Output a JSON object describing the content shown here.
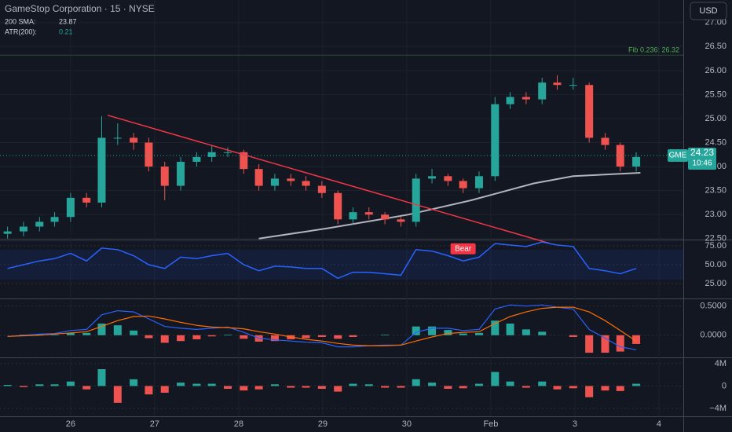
{
  "chart_data": [
    {
      "type": "candlestick",
      "title": "GameStop Corporation · 15 · NYSE",
      "currency": "USD",
      "up_color": "#26a69a",
      "down_color": "#ef5350",
      "x": [
        -0.75,
        -0.56,
        -0.37,
        -0.19,
        0,
        0.19,
        0.37,
        0.56,
        0.75,
        0.93,
        1.12,
        1.31,
        1.5,
        1.68,
        1.87,
        2.06,
        2.24,
        2.43,
        2.62,
        2.8,
        2.99,
        3.18,
        3.36,
        3.55,
        3.74,
        3.93,
        4.11,
        4.3,
        4.49,
        4.67,
        4.86,
        5.05,
        5.23,
        5.42,
        5.61,
        5.79,
        5.98,
        6.17,
        6.36,
        6.54,
        6.73
      ],
      "open": [
        22.6,
        22.65,
        22.75,
        22.85,
        22.95,
        23.35,
        23.25,
        24.6,
        24.6,
        24.5,
        24.0,
        23.6,
        24.1,
        24.2,
        24.3,
        24.3,
        23.95,
        23.6,
        23.75,
        23.7,
        23.6,
        23.45,
        22.9,
        23.05,
        23.0,
        22.9,
        22.85,
        23.75,
        23.8,
        23.7,
        23.55,
        23.8,
        25.3,
        25.45,
        25.4,
        25.75,
        25.7,
        25.7,
        24.6,
        24.45,
        24.0
      ],
      "high": [
        22.75,
        22.85,
        22.95,
        23.05,
        23.45,
        23.45,
        25.05,
        24.9,
        24.7,
        24.6,
        24.1,
        24.2,
        24.3,
        24.45,
        24.4,
        24.35,
        24.05,
        23.85,
        23.85,
        23.8,
        23.7,
        23.5,
        23.15,
        23.15,
        23.05,
        22.95,
        23.85,
        23.95,
        23.85,
        23.75,
        23.9,
        25.45,
        25.55,
        25.55,
        25.85,
        25.9,
        25.85,
        25.75,
        24.7,
        24.5,
        24.3
      ],
      "low": [
        22.5,
        22.55,
        22.65,
        22.75,
        22.85,
        23.15,
        23.15,
        24.45,
        24.35,
        23.9,
        23.3,
        23.5,
        24.0,
        24.1,
        24.2,
        23.85,
        23.5,
        23.5,
        23.6,
        23.5,
        23.35,
        22.8,
        22.8,
        22.9,
        22.8,
        22.75,
        22.75,
        23.65,
        23.6,
        23.45,
        23.45,
        23.7,
        25.2,
        25.3,
        25.3,
        25.6,
        25.6,
        24.5,
        24.35,
        23.9,
        23.9
      ],
      "close": [
        22.65,
        22.75,
        22.85,
        22.95,
        23.35,
        23.25,
        24.6,
        24.6,
        24.5,
        24.0,
        23.6,
        24.1,
        24.2,
        24.3,
        24.3,
        23.95,
        23.6,
        23.75,
        23.7,
        23.6,
        23.45,
        22.9,
        23.05,
        23.0,
        22.9,
        22.85,
        23.75,
        23.8,
        23.7,
        23.55,
        23.8,
        25.3,
        25.45,
        25.4,
        25.75,
        25.7,
        25.7,
        24.6,
        24.45,
        24.0,
        24.2
      ],
      "xlim": [
        -0.84,
        7.29
      ],
      "xticks": [
        {
          "value": 0,
          "label": "26"
        },
        {
          "value": 1,
          "label": "27"
        },
        {
          "value": 2,
          "label": "28"
        },
        {
          "value": 3,
          "label": "29"
        },
        {
          "value": 4,
          "label": "30"
        },
        {
          "value": 5,
          "label": "Feb"
        },
        {
          "value": 6,
          "label": "3"
        },
        {
          "value": 7,
          "label": "4"
        }
      ],
      "ylim": [
        22.48,
        27.47
      ],
      "yticks": [
        {
          "value": 22.5,
          "label": "22.50"
        },
        {
          "value": 23,
          "label": "23.00"
        },
        {
          "value": 23.5,
          "label": "23.50"
        },
        {
          "value": 24,
          "label": "24.00"
        },
        {
          "value": 24.5,
          "label": "24.50"
        },
        {
          "value": 25,
          "label": "25.00"
        },
        {
          "value": 25.5,
          "label": "25.50"
        },
        {
          "value": 26,
          "label": "26.00"
        },
        {
          "value": 26.5,
          "label": "26.50"
        },
        {
          "value": 27,
          "label": "27.00"
        }
      ],
      "legend": [
        {
          "label": "200 SMA:",
          "value": 23.87
        },
        {
          "label": "ATR(200):",
          "value": 0.21
        }
      ],
      "sma": {
        "color": "#b2b5be",
        "x": [
          2.24,
          3.08,
          4.02,
          4.77,
          5.51,
          5.98,
          6.78
        ],
        "values": [
          22.5,
          22.72,
          23.0,
          23.3,
          23.65,
          23.8,
          23.87
        ]
      },
      "trendline": {
        "color": "#f23645",
        "x": [
          0.44,
          5.7
        ],
        "values": [
          25.07,
          22.4
        ]
      },
      "fib": {
        "label": "Fib 0.236: 26.32",
        "value": 26.32,
        "color": "#4caf50"
      },
      "last_price": {
        "symbol": "GME",
        "value": 24.23,
        "time": "10:46",
        "color": "#26a69a"
      }
    },
    {
      "type": "line",
      "color": "#2962ff",
      "values": [
        45,
        50,
        55,
        58,
        65,
        55,
        72,
        70,
        62,
        50,
        45,
        60,
        58,
        62,
        65,
        50,
        42,
        48,
        47,
        45,
        45,
        32,
        40,
        40,
        38,
        36,
        70,
        68,
        62,
        55,
        60,
        78,
        76,
        74,
        80,
        76,
        74,
        45,
        42,
        38,
        45
      ],
      "ylim": [
        5.2,
        83.3
      ],
      "band": [
        30,
        70
      ],
      "yticks": [
        {
          "value": 25,
          "label": "25.00"
        },
        {
          "value": 50,
          "label": "50.00"
        },
        {
          "value": 75,
          "label": "75.00"
        }
      ],
      "annotation": {
        "text": "Bear",
        "x": 4.67,
        "value": 71,
        "color": "#f23645"
      }
    },
    {
      "type": "macd",
      "series": [
        {
          "color": "#2962ff",
          "values": [
            -0.02,
            0,
            0.02,
            0.03,
            0.08,
            0.1,
            0.35,
            0.42,
            0.4,
            0.28,
            0.15,
            0.12,
            0.1,
            0.12,
            0.14,
            0.05,
            -0.05,
            -0.08,
            -0.1,
            -0.12,
            -0.13,
            -0.2,
            -0.2,
            -0.18,
            -0.17,
            -0.17,
            0.05,
            0.12,
            0.12,
            0.08,
            0.1,
            0.45,
            0.52,
            0.5,
            0.52,
            0.48,
            0.45,
            0.1,
            -0.05,
            -0.2,
            -0.25
          ]
        },
        {
          "color": "#ff6d00",
          "values": [
            -0.02,
            -0.01,
            0,
            0.02,
            0.04,
            0.06,
            0.15,
            0.25,
            0.32,
            0.33,
            0.28,
            0.22,
            0.17,
            0.14,
            0.13,
            0.11,
            0.06,
            0.02,
            -0.03,
            -0.07,
            -0.1,
            -0.14,
            -0.17,
            -0.18,
            -0.18,
            -0.17,
            -0.1,
            -0.03,
            0.03,
            0.05,
            0.06,
            0.2,
            0.32,
            0.4,
            0.46,
            0.48,
            0.48,
            0.4,
            0.25,
            0.08,
            -0.1
          ]
        }
      ],
      "histogram": [
        0,
        0.01,
        0.02,
        0.01,
        0.04,
        0.04,
        0.2,
        0.17,
        0.08,
        -0.05,
        -0.13,
        -0.1,
        -0.07,
        -0.02,
        0.01,
        -0.06,
        -0.11,
        -0.1,
        -0.07,
        -0.05,
        -0.03,
        -0.06,
        -0.03,
        0,
        0.01,
        0,
        0.15,
        0.15,
        0.09,
        0.03,
        0.04,
        0.25,
        0.2,
        0.1,
        0.06,
        0,
        -0.03,
        -0.3,
        -0.3,
        -0.28,
        -0.15
      ],
      "ylim": [
        -0.38,
        0.63
      ],
      "yticks": [
        {
          "value": 0,
          "label": "0.0000"
        },
        {
          "value": 0.5,
          "label": "0.5000"
        }
      ]
    },
    {
      "type": "bar",
      "values": [
        0.2,
        -0.2,
        0.3,
        0.3,
        0.8,
        -0.6,
        3,
        -3,
        1.2,
        -1.5,
        -1.2,
        0.6,
        0.4,
        0.4,
        -0.5,
        -0.8,
        -0.6,
        0.3,
        -0.3,
        -0.3,
        -0.5,
        -1,
        0.4,
        0.3,
        -0.3,
        -0.3,
        1.2,
        0.6,
        -0.5,
        -0.4,
        0.4,
        2.5,
        0.8,
        -0.3,
        0.8,
        -0.6,
        -0.4,
        -2,
        -0.8,
        -0.9,
        0.4
      ],
      "ylim": [
        -5.4,
        5.1
      ],
      "yticks": [
        {
          "value": -4,
          "label": "−4M"
        },
        0,
        {
          "value": 4,
          "label": "4M"
        }
      ]
    }
  ]
}
